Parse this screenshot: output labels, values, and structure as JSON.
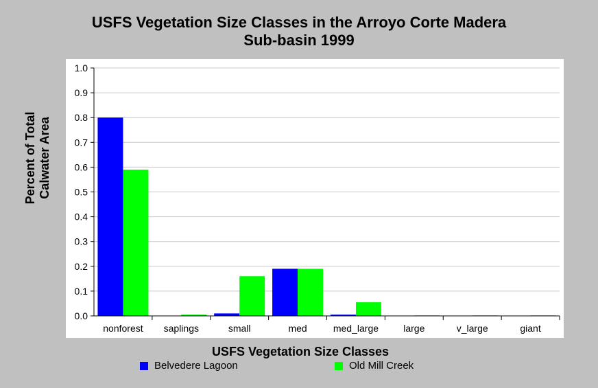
{
  "chart_data": {
    "type": "bar",
    "title_lines": [
      "USFS Vegetation Size Classes in the Arroyo Corte Madera",
      "Sub-basin 1999"
    ],
    "xlabel": "USFS Vegetation Size Classes",
    "ylabel_lines": [
      "Percent of Total",
      "Calwater Area"
    ],
    "categories": [
      "nonforest",
      "saplings",
      "small",
      "med",
      "med_large",
      "large",
      "v_large",
      "giant"
    ],
    "series": [
      {
        "name": "Belvedere Lagoon",
        "color": "#0000ff",
        "values": [
          0.8,
          0.0,
          0.01,
          0.19,
          0.005,
          0.0,
          0.0,
          0.0
        ]
      },
      {
        "name": "Old Mill Creek",
        "color": "#00ff00",
        "values": [
          0.59,
          0.005,
          0.16,
          0.19,
          0.055,
          0.002,
          0.002,
          0.002
        ]
      }
    ],
    "ylim": [
      0,
      1.0
    ],
    "yticks": [
      "0.0",
      "0.1",
      "0.2",
      "0.3",
      "0.4",
      "0.5",
      "0.6",
      "0.7",
      "0.8",
      "0.9",
      "1.0"
    ],
    "grid": true,
    "legend_position": "bottom"
  }
}
